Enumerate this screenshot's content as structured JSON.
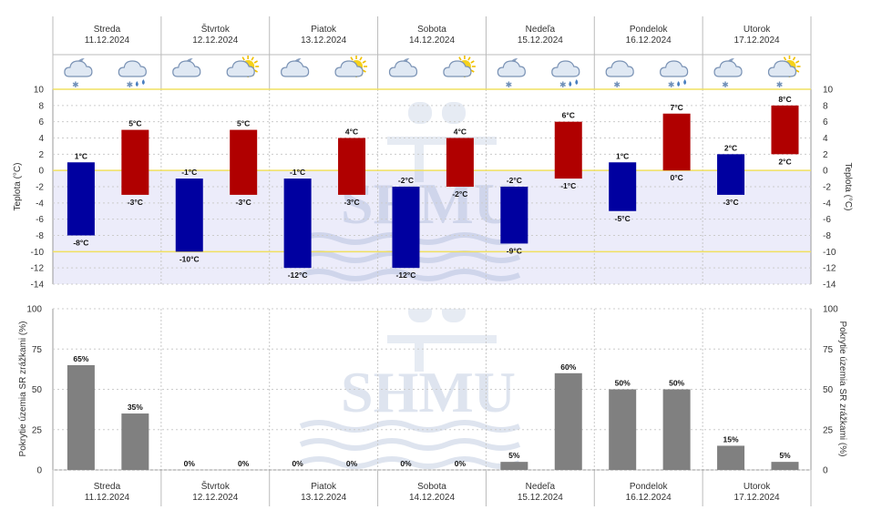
{
  "days": [
    {
      "name": "Streda",
      "date": "11.12.2024"
    },
    {
      "name": "Štvrtok",
      "date": "12.12.2024"
    },
    {
      "name": "Piatok",
      "date": "13.12.2024"
    },
    {
      "name": "Sobota",
      "date": "14.12.2024"
    },
    {
      "name": "Nedeľa",
      "date": "15.12.2024"
    },
    {
      "name": "Pondelok",
      "date": "16.12.2024"
    },
    {
      "name": "Utorok",
      "date": "17.12.2024"
    }
  ],
  "weather_icons": [
    {
      "night": "night-cloud-snow-icon",
      "day": "cloud-rain-snow-icon"
    },
    {
      "night": "night-cloud-icon",
      "day": "sun-cloud-icon"
    },
    {
      "night": "night-cloud-icon",
      "day": "sun-cloud-icon"
    },
    {
      "night": "night-cloud-icon",
      "day": "sun-cloud-icon"
    },
    {
      "night": "night-cloud-snow-icon",
      "day": "cloud-rain-snow-icon"
    },
    {
      "night": "cloud-snow-icon",
      "day": "cloud-rain-snow-icon"
    },
    {
      "night": "night-cloud-snow-icon",
      "day": "sun-cloud-snow-icon"
    }
  ],
  "watermark": "SHMU",
  "colors": {
    "night_bar": "#0000a0",
    "day_bar": "#b00000",
    "precip_bar": "#808080",
    "negative_zone": "#ececfa",
    "reference_line": "#f0e060",
    "grid": "#cccccc"
  },
  "chart_data": [
    {
      "type": "floating-bar",
      "ylabel": "Teplota (°C)",
      "ylim": [
        -14,
        10
      ],
      "yticks": [
        10,
        8,
        6,
        4,
        2,
        0,
        -2,
        -4,
        -6,
        -8,
        -10,
        -12,
        -14
      ],
      "unit": "°C",
      "highlight_lines": [
        10,
        0,
        -10
      ],
      "series": [
        {
          "name": "noc",
          "values": [
            {
              "top": 1,
              "bottom": -8
            },
            {
              "top": -1,
              "bottom": -10
            },
            {
              "top": -1,
              "bottom": -12
            },
            {
              "top": -2,
              "bottom": -12
            },
            {
              "top": -2,
              "bottom": -9
            },
            {
              "top": 1,
              "bottom": -5
            },
            {
              "top": 2,
              "bottom": -3
            }
          ]
        },
        {
          "name": "den",
          "values": [
            {
              "top": 5,
              "bottom": -3
            },
            {
              "top": 5,
              "bottom": -3
            },
            {
              "top": 4,
              "bottom": -3
            },
            {
              "top": 4,
              "bottom": -2
            },
            {
              "top": 6,
              "bottom": -1
            },
            {
              "top": 7,
              "bottom": 0
            },
            {
              "top": 8,
              "bottom": 2
            }
          ]
        }
      ]
    },
    {
      "type": "bar",
      "ylabel": "Pokrytie územia SR zrážkami (%)",
      "ylim": [
        0,
        100
      ],
      "yticks": [
        100,
        75,
        50,
        25,
        0
      ],
      "unit": "%",
      "series": [
        {
          "name": "noc",
          "values": [
            65,
            0,
            0,
            0,
            5,
            50,
            15
          ]
        },
        {
          "name": "den",
          "values": [
            35,
            0,
            0,
            0,
            60,
            50,
            5
          ]
        }
      ]
    }
  ]
}
